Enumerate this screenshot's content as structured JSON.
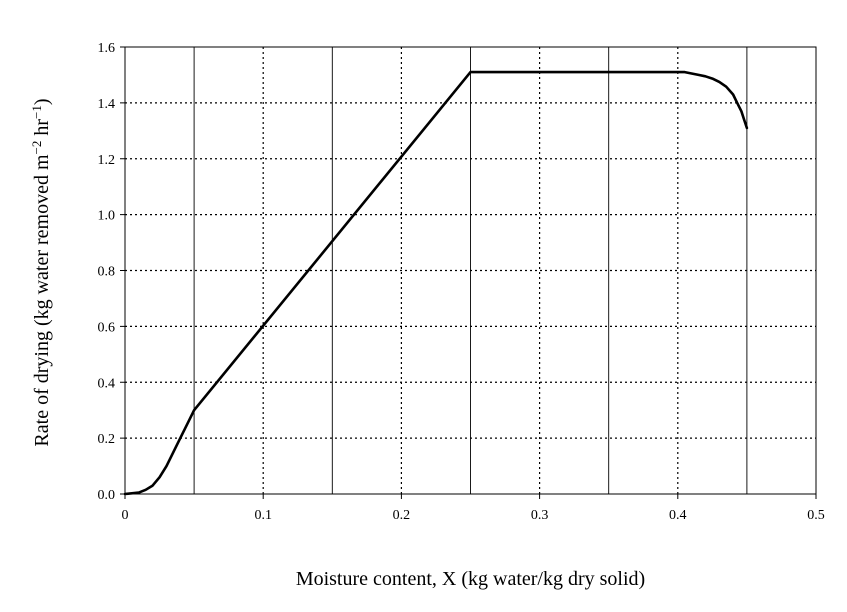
{
  "chart_data": {
    "type": "line",
    "title": "",
    "xlabel": "Moisture content, X (kg water/kg dry solid)",
    "ylabel_parts": [
      "Rate of drying (kg water removed m",
      "−2",
      " hr",
      "−1",
      ")"
    ],
    "xlim": [
      0,
      0.5
    ],
    "ylim": [
      0,
      1.6
    ],
    "x_ticks": [
      0,
      0.1,
      0.2,
      0.3,
      0.4,
      0.5
    ],
    "x_tick_labels": [
      "0",
      "0.1",
      "0.2",
      "0.3",
      "0.4",
      "0.5"
    ],
    "y_ticks": [
      0,
      0.2,
      0.4,
      0.6,
      0.8,
      1.0,
      1.2,
      1.4,
      1.6
    ],
    "y_tick_labels": [
      "0.0",
      "0.2",
      "0.4",
      "0.6",
      "0.8",
      "1.0",
      "1.2",
      "1.4",
      "1.6"
    ],
    "vertical_grid_solid": [
      0.05,
      0.15,
      0.25,
      0.35,
      0.45
    ],
    "vertical_grid_dotted": [
      0.1,
      0.2,
      0.3,
      0.4
    ],
    "horizontal_grid": "dotted",
    "legend": "none",
    "series": [
      {
        "x": [
          0,
          0.01,
          0.015,
          0.02,
          0.025,
          0.03,
          0.035,
          0.04,
          0.045,
          0.05,
          0.25,
          0.4,
          0.405,
          0.41,
          0.415,
          0.42,
          0.425,
          0.43,
          0.435,
          0.44,
          0.443,
          0.446,
          0.448,
          0.45
        ],
        "y": [
          0,
          0.005,
          0.015,
          0.03,
          0.06,
          0.1,
          0.15,
          0.2,
          0.25,
          0.3,
          1.51,
          1.51,
          1.51,
          1.505,
          1.5,
          1.495,
          1.487,
          1.475,
          1.458,
          1.43,
          1.4,
          1.37,
          1.34,
          1.31
        ],
        "color": "#000000"
      }
    ]
  }
}
